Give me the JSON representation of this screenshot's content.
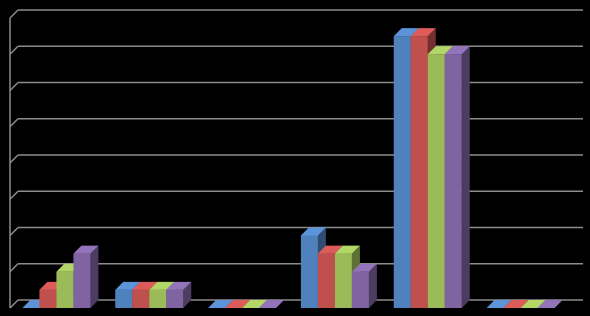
{
  "chart_data": {
    "type": "bar3d",
    "categories": [
      null,
      null,
      null,
      null,
      null,
      null
    ],
    "series": [
      {
        "color": "#4f81bd",
        "values": [
          0,
          0.5,
          0,
          2,
          7.5,
          0
        ]
      },
      {
        "color": "#c0504d",
        "values": [
          0.5,
          0.5,
          0,
          1.5,
          7.5,
          0
        ]
      },
      {
        "color": "#9bbb59",
        "values": [
          1,
          0.5,
          0,
          1.5,
          7,
          0
        ]
      },
      {
        "color": "#8064a2",
        "values": [
          1.5,
          0.5,
          0,
          1,
          7,
          0
        ]
      }
    ],
    "ylim": [
      0,
      8
    ],
    "yticks": [
      0,
      1,
      2,
      3,
      4,
      5,
      6,
      7,
      8
    ],
    "grid": true
  }
}
